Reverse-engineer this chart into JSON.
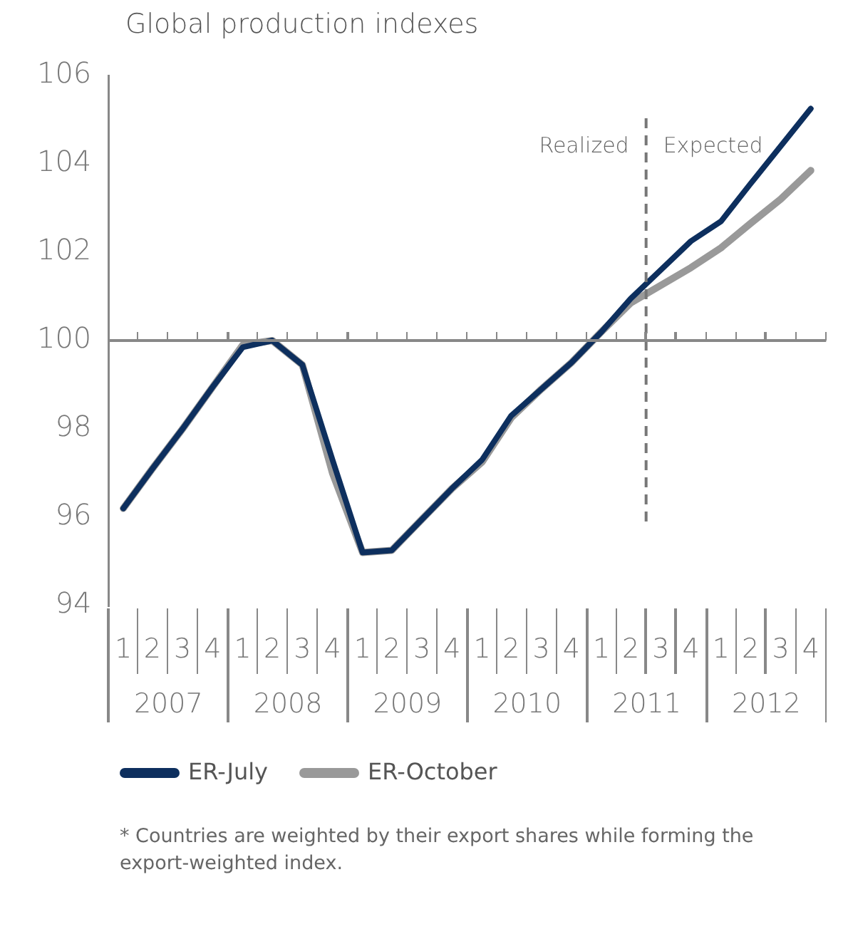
{
  "chart_data": {
    "type": "line",
    "title": "Global production indexes",
    "x": [
      "2007-02-15",
      "2007-05-15",
      "2007-08-15",
      "2007-11-15",
      "2008-02-15",
      "2008-05-15",
      "2008-08-15",
      "2008-11-15",
      "2009-02-15",
      "2009-05-15",
      "2009-08-15",
      "2009-11-15",
      "2010-02-15",
      "2010-05-15",
      "2010-08-15",
      "2010-11-15",
      "2011-02-15",
      "2011-05-15",
      "2011-08-15",
      "2011-11-15",
      "2012-02-15",
      "2012-05-15",
      "2012-08-15",
      "2012-11-15"
    ],
    "series": [
      {
        "name": "ER-July",
        "color": "#0d2f5e",
        "values": [
          96.2,
          97.1,
          98.0,
          98.95,
          99.85,
          100.0,
          99.45,
          97.3,
          95.2,
          95.25,
          95.95,
          96.65,
          97.3,
          98.3,
          98.9,
          99.5,
          100.2,
          100.95,
          101.6,
          102.25,
          102.7,
          103.55,
          104.4,
          105.25
        ]
      },
      {
        "name": "ER-October",
        "color": "#999999",
        "values": [
          96.2,
          97.1,
          98.0,
          98.95,
          99.9,
          100.0,
          99.45,
          97.0,
          95.2,
          95.25,
          95.95,
          96.65,
          97.25,
          98.25,
          98.9,
          99.5,
          100.2,
          100.85,
          101.25,
          101.65,
          102.1,
          102.65,
          103.2,
          103.85
        ]
      }
    ],
    "xlim": [
      "2007-01-01",
      "2013-01-01"
    ],
    "xticks": [
      {
        "value": "2007-02-15",
        "label": "1"
      },
      {
        "value": "2007-05-15",
        "label": "2"
      },
      {
        "value": "2007-08-15",
        "label": "3"
      },
      {
        "value": "2007-11-15",
        "label": "4"
      },
      {
        "value": "2008-02-15",
        "label": "1"
      },
      {
        "value": "2008-05-15",
        "label": "2"
      },
      {
        "value": "2008-08-15",
        "label": "3"
      },
      {
        "value": "2008-11-15",
        "label": "4"
      },
      {
        "value": "2009-02-15",
        "label": "1"
      },
      {
        "value": "2009-05-15",
        "label": "2"
      },
      {
        "value": "2009-08-15",
        "label": "3"
      },
      {
        "value": "2009-11-15",
        "label": "4"
      },
      {
        "value": "2010-02-15",
        "label": "1"
      },
      {
        "value": "2010-05-15",
        "label": "2"
      },
      {
        "value": "2010-08-15",
        "label": "3"
      },
      {
        "value": "2010-11-15",
        "label": "4"
      },
      {
        "value": "2011-02-15",
        "label": "1"
      },
      {
        "value": "2011-05-15",
        "label": "2"
      },
      {
        "value": "2011-08-15",
        "label": "3"
      },
      {
        "value": "2011-11-15",
        "label": "4"
      },
      {
        "value": "2012-02-15",
        "label": "1"
      },
      {
        "value": "2012-05-15",
        "label": "2"
      },
      {
        "value": "2012-08-15",
        "label": "3"
      },
      {
        "value": "2012-11-15",
        "label": "4"
      }
    ],
    "ylim": [
      94,
      106
    ],
    "yticks": [
      94,
      96,
      98,
      100,
      102,
      104,
      106
    ],
    "grid": false,
    "legend": "bottom",
    "marker": "none",
    "line_style": "solid",
    "ref_lines": [
      {
        "axis": "x",
        "value": "2011-07-01",
        "color": "#777777",
        "line_style": "dashed"
      },
      {
        "axis": "y",
        "value": 100,
        "color": "#888888",
        "line_style": "solid"
      }
    ],
    "annotations": [
      "Realized",
      "Expected",
      "2007",
      "2008",
      "2009",
      "2010",
      "2011",
      "2012",
      "* Countries are weighted by their export shares while forming the export-weighted index."
    ]
  }
}
